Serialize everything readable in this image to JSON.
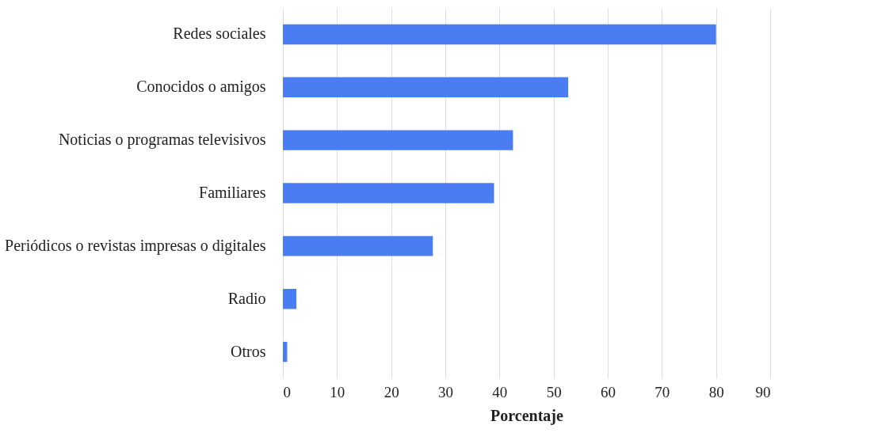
{
  "chart_data": {
    "type": "bar",
    "orientation": "horizontal",
    "xlabel": "Porcentaje",
    "categories": [
      "Redes sociales",
      "Conocidos o amigos",
      "Noticias o programas televisivos",
      "Familiares",
      "Periódicos o revistas impresas o digitales",
      "Radio",
      "Otros"
    ],
    "values": [
      80,
      52.7,
      42.5,
      39,
      27.7,
      2.5,
      0.8
    ],
    "color": "#4a7cf2",
    "xlim": [
      0,
      90
    ],
    "xticks": [
      0,
      10,
      20,
      30,
      40,
      50,
      60,
      70,
      80,
      90
    ],
    "grid": "x"
  }
}
